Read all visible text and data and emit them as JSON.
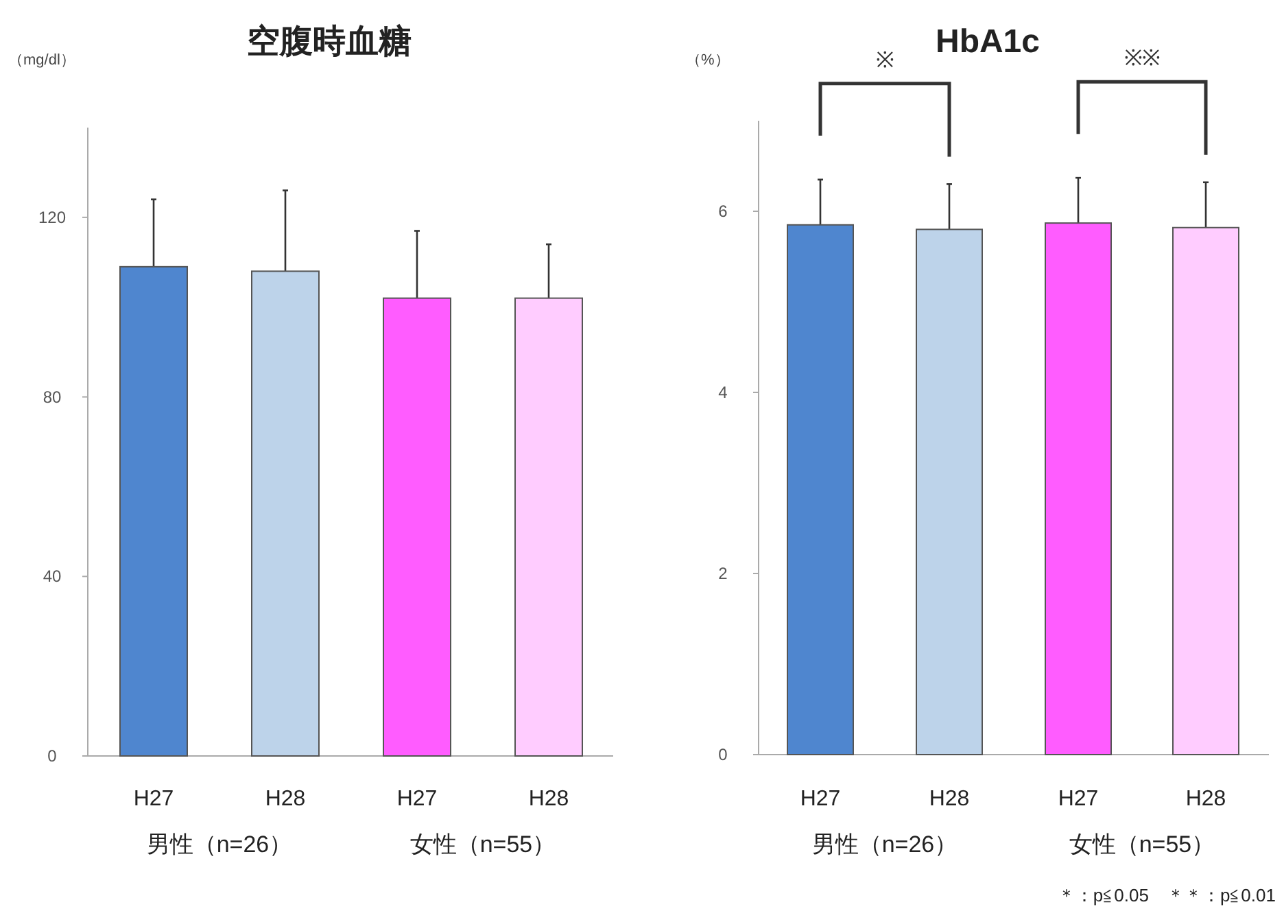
{
  "chart_data": [
    {
      "type": "bar",
      "title": "空腹時血糖",
      "ylabel": "（mg/dl）",
      "categories": [
        "H27",
        "H28",
        "H27",
        "H28"
      ],
      "values": [
        109,
        108,
        102,
        102
      ],
      "errors": [
        15,
        18,
        15,
        12
      ],
      "colors": [
        "#4f86cf",
        "#bdd3ea",
        "#ff5cff",
        "#ffccff"
      ],
      "ylim": [
        0,
        140
      ],
      "yticks": [
        0,
        40,
        80,
        120
      ],
      "annotations": [
        "男性（n=26）",
        "女性（n=55）"
      ]
    },
    {
      "type": "bar",
      "title": "HbA1c",
      "ylabel": "（%）",
      "categories": [
        "H27",
        "H28",
        "H27",
        "H28"
      ],
      "values": [
        5.85,
        5.8,
        5.87,
        5.82
      ],
      "errors": [
        0.5,
        0.5,
        0.5,
        0.5
      ],
      "colors": [
        "#4f86cf",
        "#bdd3ea",
        "#ff5cff",
        "#ffccff"
      ],
      "ylim": [
        0,
        7
      ],
      "yticks": [
        0,
        2,
        4,
        6
      ],
      "annotations": [
        "男性（n=26）",
        "女性（n=55）",
        "※",
        "※※",
        "＊：p≦0.05　＊＊：p≦0.01"
      ]
    }
  ]
}
